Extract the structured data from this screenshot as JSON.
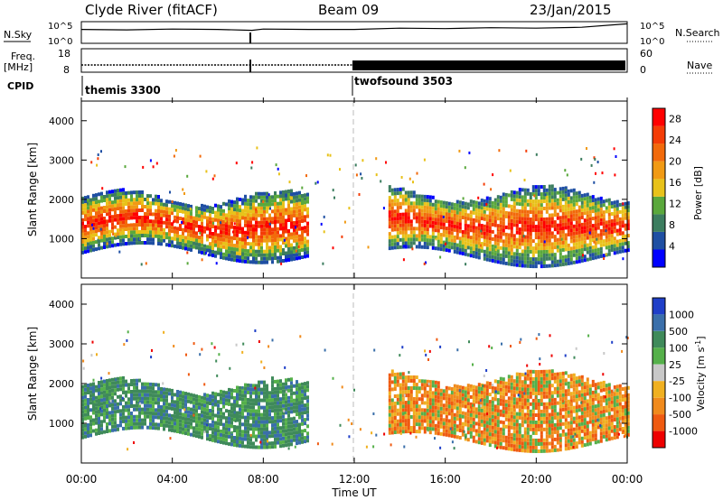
{
  "header": {
    "station": "Clyde River (fitACF)",
    "beam": "Beam 09",
    "date": "23/Jan/2015"
  },
  "side_labels": {
    "nsky": "N.Sky",
    "freq_top": "Freq.",
    "freq_unit": "[MHz]",
    "cpid": "CPID",
    "nsearch": "N.Search",
    "nave": "Nave"
  },
  "ticks": {
    "nsky_left": [
      "10^5",
      "10^0"
    ],
    "nsearch_right": [
      "10^5",
      "10^0"
    ],
    "freq_left": [
      "18",
      "8"
    ],
    "nave_right": [
      "60",
      "0"
    ]
  },
  "cpid_labels": [
    "themis 3300",
    "twofsound 3503"
  ],
  "colors": {
    "power": [
      "#0000ff",
      "#1f4fa3",
      "#3c7d5f",
      "#5aa83c",
      "#e8c21a",
      "#f19a14",
      "#f26a0b",
      "#f43c06",
      "#ff0000"
    ],
    "velocity": [
      "#1f3fc8",
      "#3a6faa",
      "#3f8a5a",
      "#55b04a",
      "#c8c8c8",
      "#f0b020",
      "#f08a1c",
      "#ef5a10",
      "#ee0000"
    ],
    "gridline": "#bbbbbb"
  },
  "chart_data": [
    {
      "type": "line",
      "name": "N.Sky / N.Search",
      "x_range": [
        0,
        24
      ],
      "series": [
        {
          "name": "N.Sky",
          "x": [
            0,
            2,
            4,
            6,
            7.5,
            8,
            10,
            12,
            14,
            16,
            18,
            20,
            22,
            24
          ],
          "values": [
            3.2,
            3.1,
            3.3,
            3.2,
            3.0,
            3.3,
            3.2,
            3.2,
            3.5,
            3.4,
            3.6,
            3.5,
            3.7,
            4.5
          ]
        },
        {
          "name": "N.Search",
          "x": [
            0,
            24
          ],
          "values": [
            0,
            0
          ]
        }
      ]
    },
    {
      "type": "line",
      "name": "Freq / Nave",
      "x_range": [
        0,
        24
      ],
      "series": [
        {
          "name": "Freq",
          "x": [
            0,
            12,
            24
          ],
          "values": [
            10,
            10,
            10
          ]
        },
        {
          "name": "Nave",
          "x": [
            0,
            12,
            12,
            24
          ],
          "values": [
            2,
            2,
            30,
            30
          ]
        }
      ]
    },
    {
      "type": "heatmap",
      "name": "Power",
      "x_ticks": [
        "00:00",
        "04:00",
        "08:00",
        "12:00",
        "16:00",
        "20:00",
        "00:00"
      ],
      "xlabel": "Time UT",
      "ylabel": "Slant Range [km]",
      "ylim": [
        0,
        4500
      ],
      "y_ticks": [
        1000,
        2000,
        3000,
        4000
      ],
      "colorbar_label": "Power [dB]",
      "colorbar_ticks": [
        4,
        8,
        12,
        16,
        20,
        24,
        28
      ],
      "colorbar_range": [
        0,
        30
      ],
      "echo_regions": [
        {
          "t": [
            0,
            10
          ],
          "range_km": [
            600,
            2200
          ]
        },
        {
          "t": [
            13.5,
            24
          ],
          "range_km": [
            500,
            2300
          ]
        }
      ]
    },
    {
      "type": "heatmap",
      "name": "Velocity",
      "x_ticks": [
        "00:00",
        "04:00",
        "08:00",
        "12:00",
        "16:00",
        "20:00",
        "00:00"
      ],
      "xlabel": "Time UT",
      "ylabel": "Slant Range [km]",
      "ylim": [
        0,
        4500
      ],
      "y_ticks": [
        1000,
        2000,
        3000,
        4000
      ],
      "colorbar_label": "Velocity [m s^-1]",
      "colorbar_ticks": [
        1000,
        500,
        100,
        25,
        -25,
        -100,
        -500,
        -1000
      ],
      "echo_regions": [
        {
          "t": [
            0,
            10
          ],
          "range_km": [
            600,
            2100
          ]
        },
        {
          "t": [
            13.5,
            24
          ],
          "range_km": [
            500,
            2300
          ]
        }
      ]
    }
  ]
}
